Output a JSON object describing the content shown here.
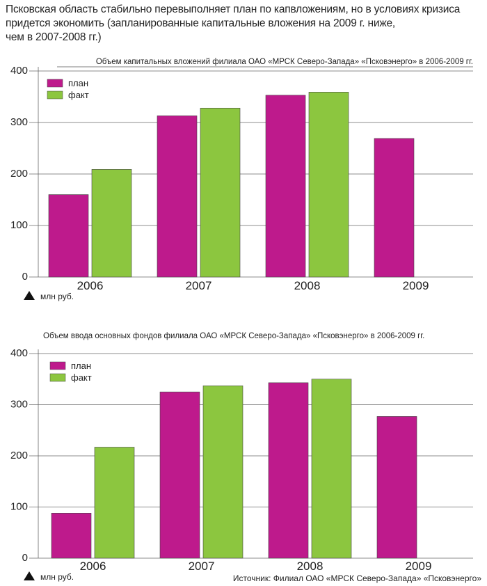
{
  "headline": "Псковская область стабильно перевыполняет план по капвложениям, но в условиях кризиса\nпридется экономить (запланированные капитальные вложения на 2009 г. ниже,\nчем в 2007-2008 гг.)",
  "source": "Источник: Филиал ОАО «МРСК Северо-Запада» «Псковэнерго»",
  "colors": {
    "plan": "#be1a8c",
    "fact": "#8cc63f"
  },
  "chart_data": [
    {
      "type": "bar",
      "title": "Объем капитальных вложений филиала ОАО «МРСК Северо-Запада» «Псковэнерго» в 2006-2009 гг.",
      "unit_label": "млн руб.",
      "categories": [
        "2006",
        "2007",
        "2008",
        "2009"
      ],
      "series": [
        {
          "name": "план",
          "key": "plan",
          "values": [
            160,
            313,
            353,
            269
          ]
        },
        {
          "name": "факт",
          "key": "fact",
          "values": [
            209,
            328,
            359,
            null
          ]
        }
      ],
      "ylim": [
        0,
        400
      ],
      "yticks": [
        "0",
        "100",
        "200",
        "300",
        "400"
      ],
      "grid": true,
      "legend": "top-left"
    },
    {
      "type": "bar",
      "title": "Объем ввода основных фондов филиала ОАО «МРСК Северо-Запада» «Псковэнерго» в 2006-2009 гг.",
      "unit_label": "млн руб.",
      "categories": [
        "2006",
        "2007",
        "2008",
        "2009"
      ],
      "series": [
        {
          "name": "план",
          "key": "plan",
          "values": [
            88,
            325,
            343,
            277
          ]
        },
        {
          "name": "факт",
          "key": "fact",
          "values": [
            217,
            337,
            350,
            null
          ]
        }
      ],
      "ylim": [
        0,
        400
      ],
      "yticks": [
        "0",
        "100",
        "200",
        "300",
        "400"
      ],
      "grid": true,
      "legend": "top-left"
    }
  ]
}
